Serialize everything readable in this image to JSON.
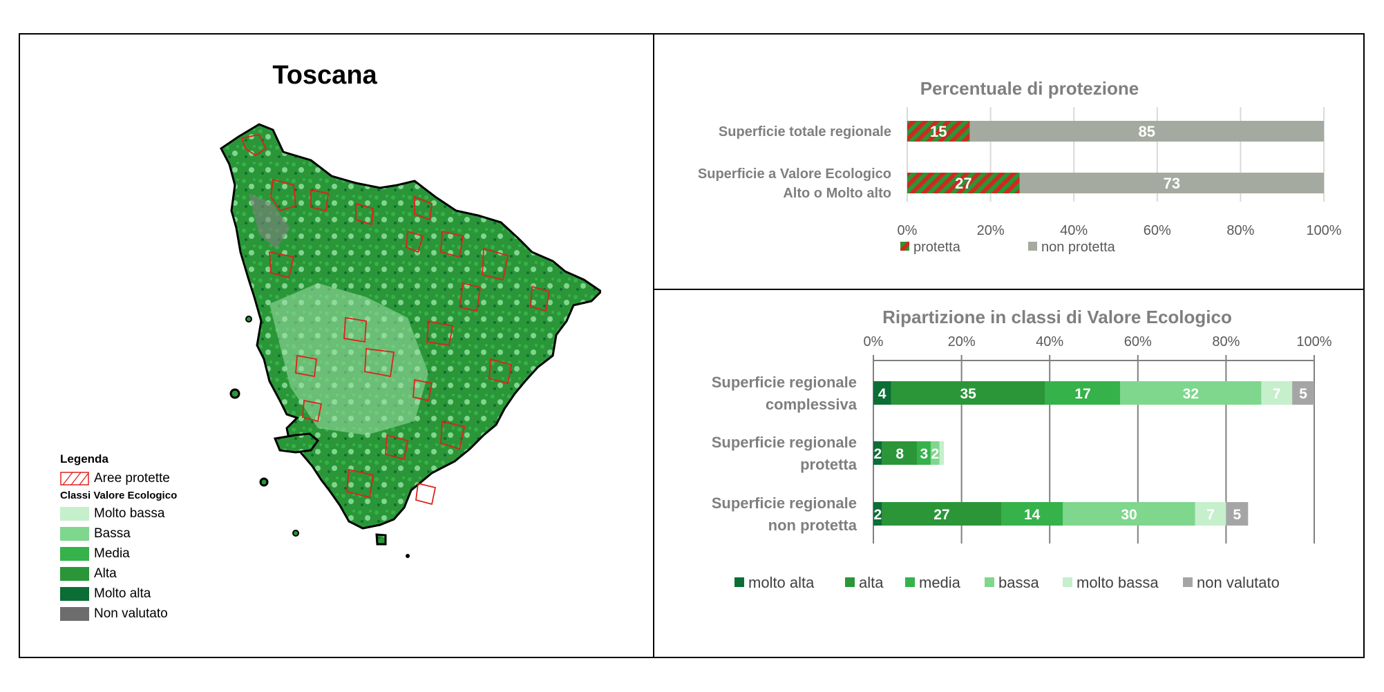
{
  "map": {
    "title": "Toscana",
    "legend": {
      "title": "Legenda",
      "protected_label": "Aree protette",
      "classes_title": "Classi Valore Ecologico",
      "classes": [
        {
          "label": "Molto bassa",
          "color": "#c6efcc"
        },
        {
          "label": "Bassa",
          "color": "#7fd68d"
        },
        {
          "label": "Media",
          "color": "#35b24a"
        },
        {
          "label": "Alta",
          "color": "#2a9638"
        },
        {
          "label": "Molto alta",
          "color": "#0b6e35"
        },
        {
          "label": "Non valutato",
          "color": "#6d6d6d"
        }
      ]
    }
  },
  "chart_data": [
    {
      "type": "bar",
      "orientation": "horizontal",
      "stacked": true,
      "title": "Percentuale di protezione",
      "categories": [
        "Superficie totale regionale",
        "Superficie a Valore Ecologico Alto o Molto alto"
      ],
      "series": [
        {
          "name": "protetta",
          "values": [
            15,
            27
          ],
          "color": "#cc2b1e",
          "pattern": "red-green-hatch"
        },
        {
          "name": "non protetta",
          "values": [
            85,
            73
          ],
          "color": "#a5aaa0"
        }
      ],
      "xticks": [
        "0%",
        "20%",
        "40%",
        "60%",
        "80%",
        "100%"
      ],
      "xlim": [
        0,
        100
      ],
      "grid": true,
      "legend": "bottom"
    },
    {
      "type": "bar",
      "orientation": "horizontal",
      "stacked": true,
      "title": "Ripartizione in classi di Valore Ecologico",
      "categories": [
        "Superficie regionale complessiva",
        "Superficie regionale protetta",
        "Superficie regionale non protetta"
      ],
      "series": [
        {
          "name": "molto alta",
          "values": [
            4,
            2,
            2
          ],
          "color": "#0b6e35"
        },
        {
          "name": "alta",
          "values": [
            35,
            8,
            27
          ],
          "color": "#2a9638"
        },
        {
          "name": "media",
          "values": [
            17,
            3,
            14
          ],
          "color": "#35b24a"
        },
        {
          "name": "bassa",
          "values": [
            32,
            2,
            30
          ],
          "color": "#7fd68d"
        },
        {
          "name": "molto bassa",
          "values": [
            7,
            1,
            7
          ],
          "color": "#c6efcc"
        },
        {
          "name": "non valutato",
          "values": [
            5,
            0,
            5
          ],
          "color": "#a5a5a5"
        }
      ],
      "xticks": [
        "0%",
        "20%",
        "40%",
        "60%",
        "80%",
        "100%"
      ],
      "xlim": [
        0,
        100
      ],
      "grid": true,
      "legend": "bottom",
      "xaxis_position": "top"
    }
  ]
}
